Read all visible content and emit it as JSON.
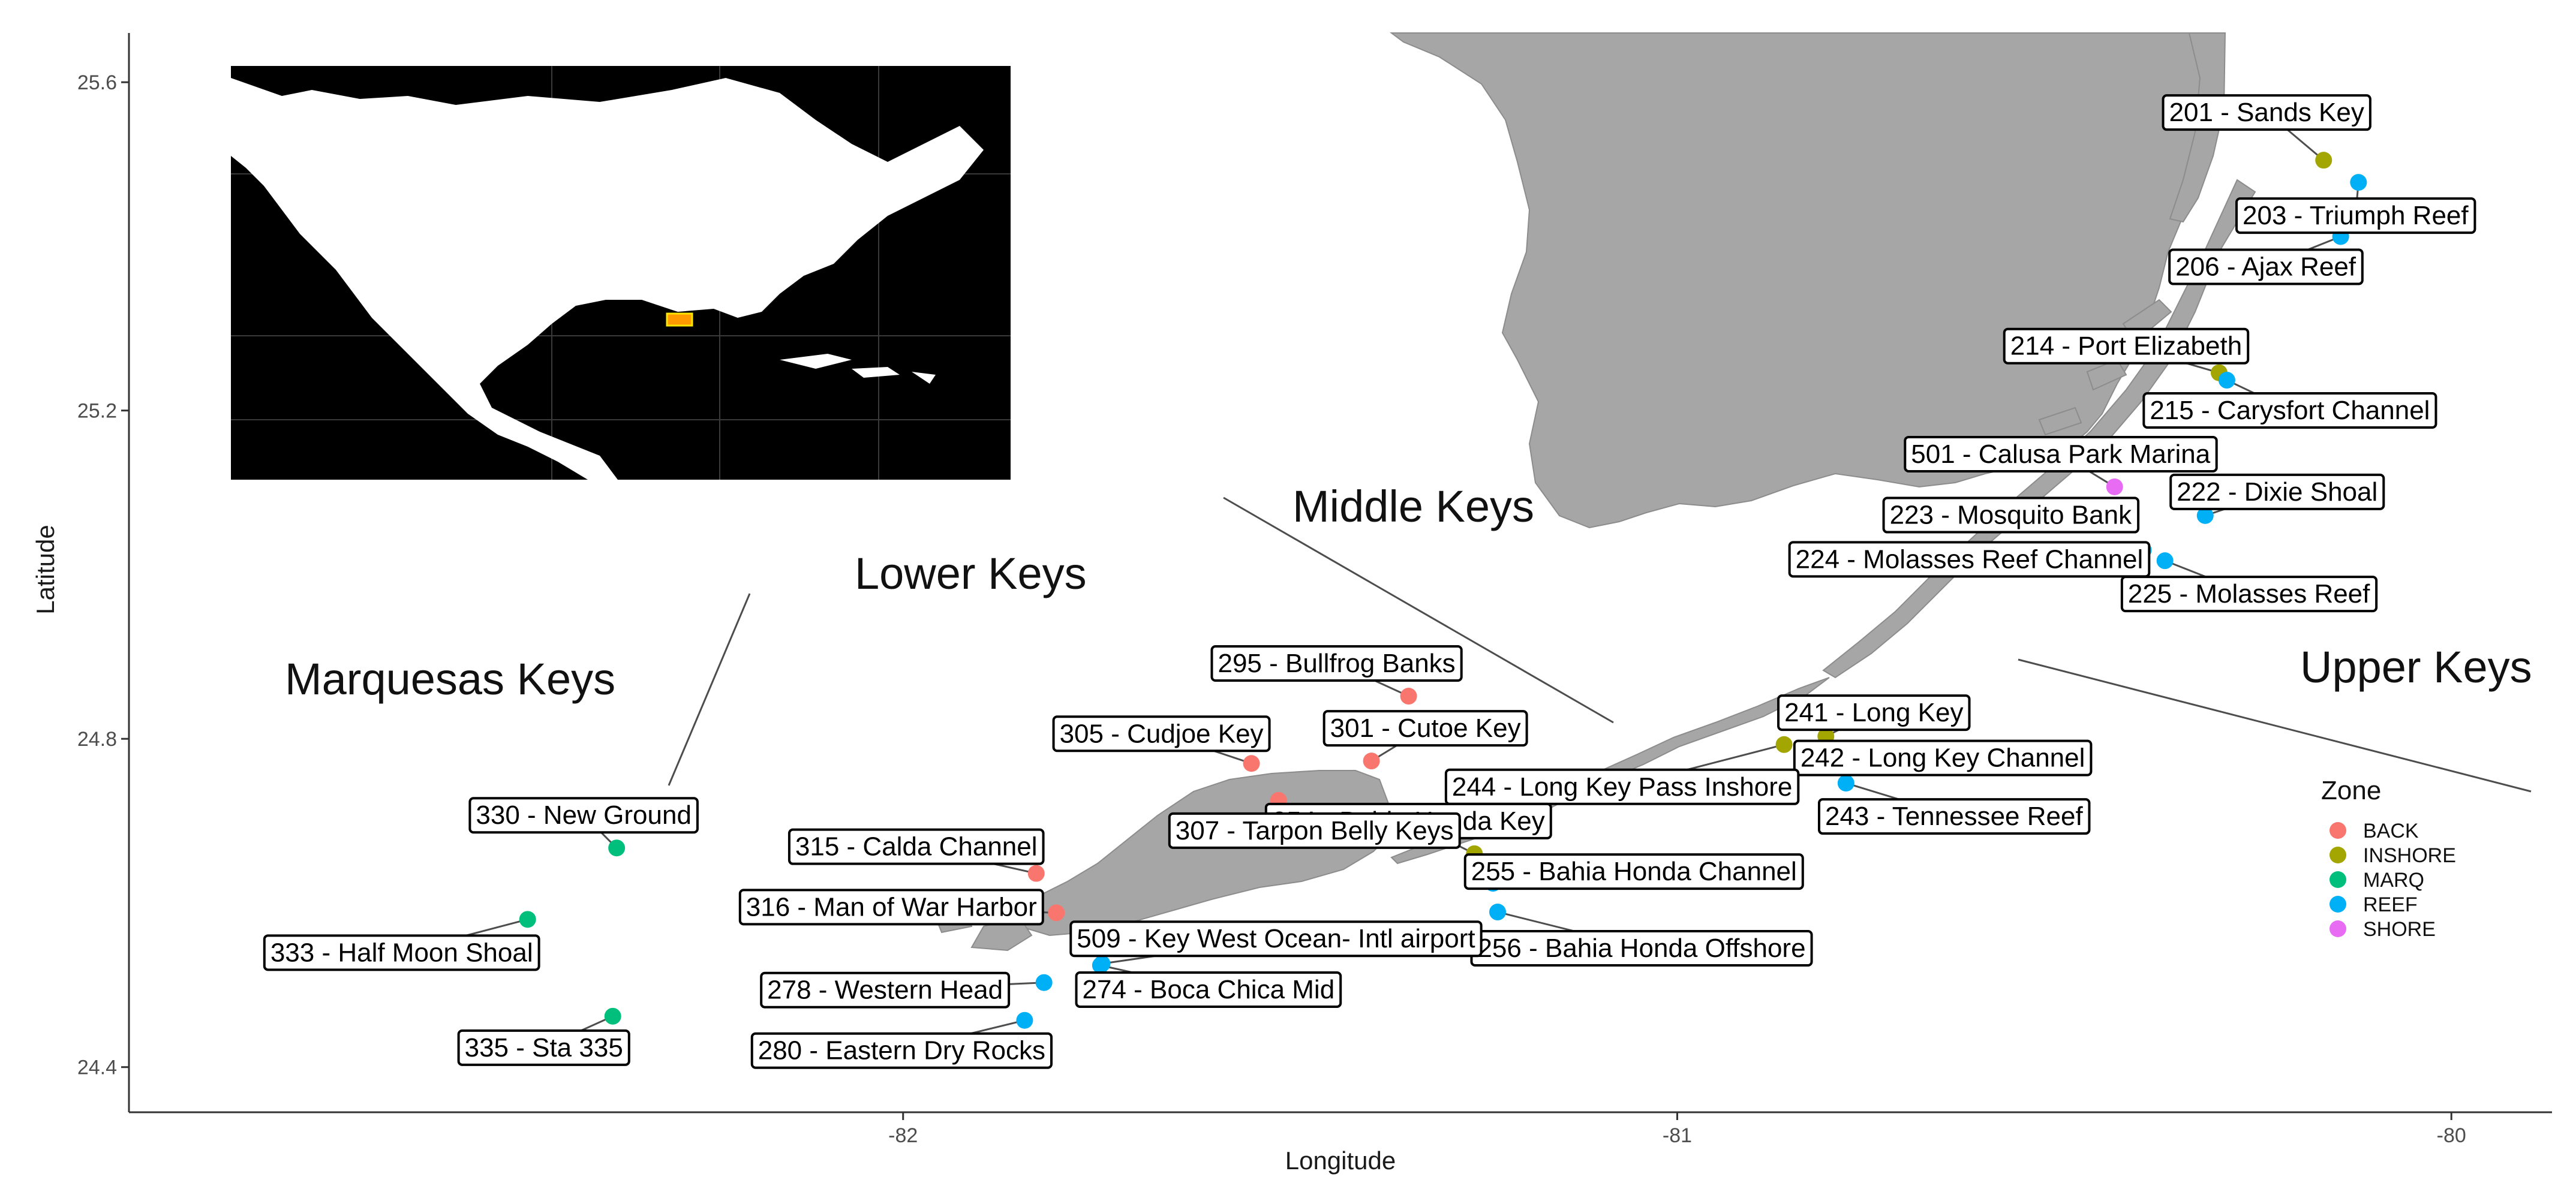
{
  "axes": {
    "xlabel": "Longitude",
    "ylabel": "Latitude",
    "xlim": [
      -83.0,
      -79.87
    ],
    "ylim": [
      24.345,
      25.66
    ],
    "xticks": [
      -82,
      -81,
      -80
    ],
    "yticks": [
      24.4,
      24.8,
      25.2,
      25.6
    ],
    "xtick_labels": [
      "-82",
      "-81",
      "-80"
    ],
    "ytick_labels": [
      "24.4",
      "24.8",
      "25.2",
      "25.6"
    ]
  },
  "regions": [
    {
      "label": "Marquesas Keys"
    },
    {
      "label": "Lower Keys"
    },
    {
      "label": "Middle Keys"
    },
    {
      "label": "Upper Keys"
    }
  ],
  "legend": {
    "title": "Zone",
    "items": [
      {
        "label": "BACK",
        "color": "#F8766D"
      },
      {
        "label": "INSHORE",
        "color": "#A3A500"
      },
      {
        "label": "MARQ",
        "color": "#00BF7D"
      },
      {
        "label": "REEF",
        "color": "#00B0F6"
      },
      {
        "label": "SHORE",
        "color": "#E76BF3"
      }
    ]
  },
  "sites": [
    {
      "label": "201 - Sands Key",
      "zone": "INSHORE",
      "lon": -80.165,
      "lat": 25.505
    },
    {
      "label": "203 - Triumph Reef",
      "zone": "REEF",
      "lon": -80.12,
      "lat": 25.478
    },
    {
      "label": "206 - Ajax Reef",
      "zone": "REEF",
      "lon": -80.143,
      "lat": 25.412
    },
    {
      "label": "214 - Port Elizabeth",
      "zone": "INSHORE",
      "lon": -80.3,
      "lat": 25.246
    },
    {
      "label": "215 - Carysfort Channel",
      "zone": "REEF",
      "lon": -80.29,
      "lat": 25.237
    },
    {
      "label": "501 - Calusa Park Marina",
      "zone": "SHORE",
      "lon": -80.435,
      "lat": 25.107
    },
    {
      "label": "222 - Dixie Shoal",
      "zone": "REEF",
      "lon": -80.318,
      "lat": 25.072
    },
    {
      "label": "223 - Mosquito Bank",
      "zone": "INSHORE",
      "lon": -80.426,
      "lat": 25.062
    },
    {
      "label": "224 - Molasses Reef Channel",
      "zone": "REEF",
      "lon": -80.398,
      "lat": 25.03
    },
    {
      "label": "225 - Molasses Reef",
      "zone": "REEF",
      "lon": -80.37,
      "lat": 25.017
    },
    {
      "label": "241 - Long Key",
      "zone": "INSHORE",
      "lon": -80.808,
      "lat": 24.803
    },
    {
      "label": "242 - Long Key Channel",
      "zone": "REEF",
      "lon": -80.812,
      "lat": 24.788
    },
    {
      "label": "243 - Tennessee Reef",
      "zone": "REEF",
      "lon": -80.782,
      "lat": 24.746
    },
    {
      "label": "244 - Long Key Pass Inshore",
      "zone": "INSHORE",
      "lon": -80.862,
      "lat": 24.793
    },
    {
      "label": "254 - Bahia Honda Key",
      "zone": "INSHORE",
      "lon": -81.262,
      "lat": 24.66
    },
    {
      "label": "255 - Bahia Honda Channel",
      "zone": "REEF",
      "lon": -81.238,
      "lat": 24.624
    },
    {
      "label": "256 - Bahia Honda Offshore",
      "zone": "REEF",
      "lon": -81.232,
      "lat": 24.589
    },
    {
      "label": "295 - Bullfrog Banks",
      "zone": "BACK",
      "lon": -81.347,
      "lat": 24.852
    },
    {
      "label": "301 - Cutoe Key",
      "zone": "BACK",
      "lon": -81.395,
      "lat": 24.773
    },
    {
      "label": "305 - Cudjoe Key",
      "zone": "BACK",
      "lon": -81.55,
      "lat": 24.77
    },
    {
      "label": "307 - Tarpon Belly Keys",
      "zone": "BACK",
      "lon": -81.515,
      "lat": 24.725
    },
    {
      "label": "315 - Calda Channel",
      "zone": "BACK",
      "lon": -81.828,
      "lat": 24.636
    },
    {
      "label": "316 - Man of War Harbor",
      "zone": "BACK",
      "lon": -81.802,
      "lat": 24.588
    },
    {
      "label": "509 - Key West Ocean- Intl airport",
      "zone": "REEF",
      "lon": -81.743,
      "lat": 24.526
    },
    {
      "label": "274 - Boca Chica Mid",
      "zone": "REEF",
      "lon": -81.745,
      "lat": 24.524
    },
    {
      "label": "278 - Western Head",
      "zone": "REEF",
      "lon": -81.818,
      "lat": 24.503
    },
    {
      "label": "280 - Eastern Dry Rocks",
      "zone": "REEF",
      "lon": -81.843,
      "lat": 24.457
    },
    {
      "label": "330 - New Ground",
      "zone": "MARQ",
      "lon": -82.37,
      "lat": 24.667
    },
    {
      "label": "333 - Half Moon Shoal",
      "zone": "MARQ",
      "lon": -82.485,
      "lat": 24.58
    },
    {
      "label": "335 - Sta 335",
      "zone": "MARQ",
      "lon": -82.375,
      "lat": 24.462
    }
  ]
}
